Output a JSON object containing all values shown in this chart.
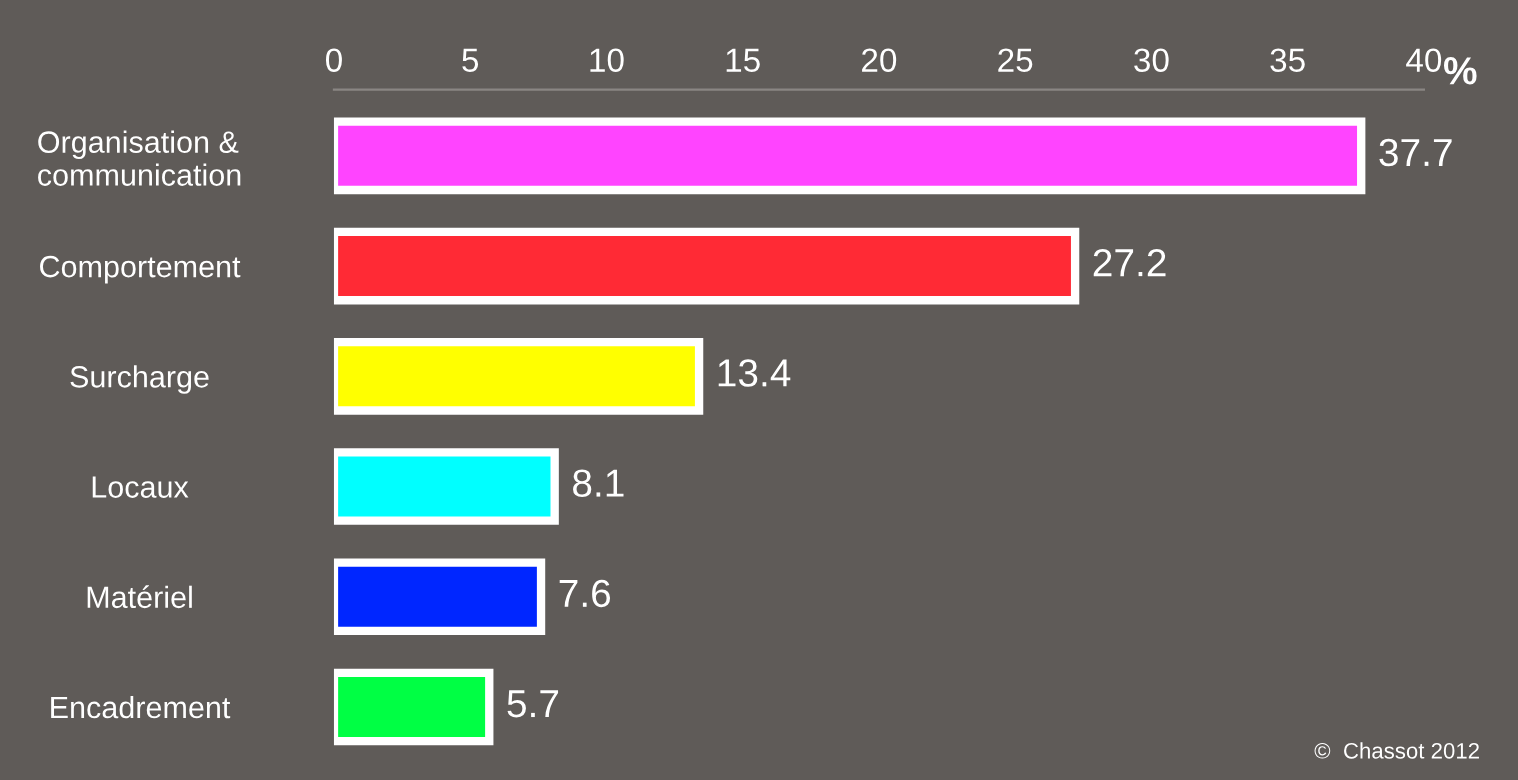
{
  "chart_data": {
    "type": "bar",
    "orientation": "horizontal",
    "xlabel": "%",
    "categories": [
      "Organisation &\ncommunication",
      "Comportement",
      "Surcharge",
      "Locaux",
      "Matériel",
      "Encadrement"
    ],
    "values": [
      37.7,
      27.2,
      13.4,
      8.1,
      7.6,
      5.7
    ],
    "colors": [
      "#ff44ff",
      "#ff2a35",
      "#ffff00",
      "#00ffff",
      "#0026ff",
      "#00ff44"
    ],
    "xlim": [
      0,
      40
    ],
    "xticks": [
      0,
      5,
      10,
      15,
      20,
      25,
      30,
      35,
      40
    ],
    "data_labels": true,
    "grid": false,
    "annotations": [
      "©  Chassot 2012"
    ]
  }
}
